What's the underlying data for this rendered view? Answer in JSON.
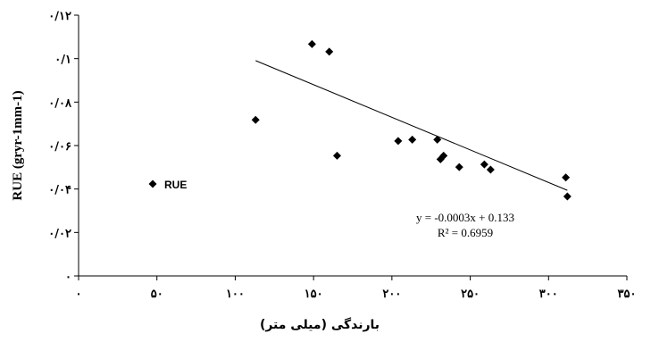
{
  "chart_data": {
    "type": "scatter",
    "title": "",
    "xlabel": "بارندگی (میلی متر)",
    "ylabel": "RUE (gryr-1mm-1)",
    "xlim": [
      0,
      350
    ],
    "ylim": [
      0,
      0.12
    ],
    "x_ticks": [
      {
        "value": 0,
        "label": "۰"
      },
      {
        "value": 50,
        "label": "۵۰"
      },
      {
        "value": 100,
        "label": "۱۰۰"
      },
      {
        "value": 150,
        "label": "۱۵۰"
      },
      {
        "value": 200,
        "label": "۲۰۰"
      },
      {
        "value": 250,
        "label": "۲۵۰"
      },
      {
        "value": 300,
        "label": "۳۰۰"
      },
      {
        "value": 350,
        "label": "۳۵۰"
      }
    ],
    "y_ticks": [
      {
        "value": 0,
        "label": "۰"
      },
      {
        "value": 0.02,
        "label": "۰/۰۲"
      },
      {
        "value": 0.04,
        "label": "۰/۰۴"
      },
      {
        "value": 0.06,
        "label": "۰/۰۶"
      },
      {
        "value": 0.08,
        "label": "۰/۰۸"
      },
      {
        "value": 0.1,
        "label": "۰/۱"
      },
      {
        "value": 0.12,
        "label": "۰/۱۲"
      }
    ],
    "series": [
      {
        "name": "RUE",
        "color": "#000000",
        "marker": "diamond",
        "points": [
          {
            "x": 113,
            "y": 0.0718
          },
          {
            "x": 149,
            "y": 0.1067
          },
          {
            "x": 160,
            "y": 0.1032
          },
          {
            "x": 165,
            "y": 0.0553
          },
          {
            "x": 204,
            "y": 0.0621
          },
          {
            "x": 213,
            "y": 0.0627
          },
          {
            "x": 229,
            "y": 0.0627
          },
          {
            "x": 231,
            "y": 0.0537
          },
          {
            "x": 233,
            "y": 0.0553
          },
          {
            "x": 243,
            "y": 0.0501
          },
          {
            "x": 259,
            "y": 0.0513
          },
          {
            "x": 263,
            "y": 0.0489
          },
          {
            "x": 311,
            "y": 0.0453
          },
          {
            "x": 312,
            "y": 0.0366
          }
        ]
      }
    ],
    "trendline": {
      "type": "linear",
      "slope": -0.0003,
      "intercept": 0.133,
      "x_range": [
        113,
        312
      ],
      "equation": "y = -0.0003x + 0.133",
      "r_squared": "R² = 0.6959"
    },
    "legend": {
      "position": "left",
      "label": "RUE"
    },
    "grid": false
  }
}
